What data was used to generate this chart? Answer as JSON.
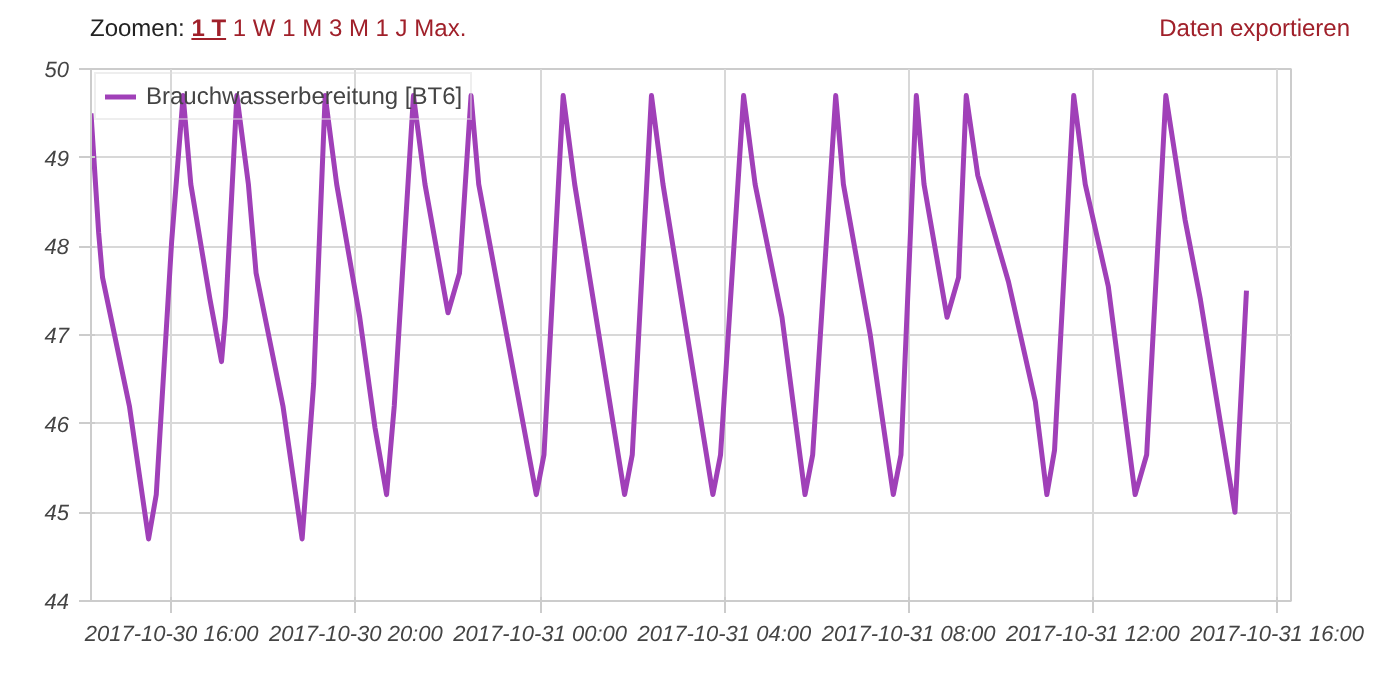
{
  "chart_data": {
    "type": "line",
    "annotations": [
      "Zoomen:",
      "1 T",
      "1 W",
      "1 M",
      "3 M",
      "1 J",
      "Max.",
      "Daten exportieren"
    ],
    "x": [
      "2017-10-30T14:15",
      "2017-10-30T14:25",
      "2017-10-30T14:30",
      "2017-10-30T15:05",
      "2017-10-30T15:30",
      "2017-10-30T15:40",
      "2017-10-30T16:00",
      "2017-10-30T16:15",
      "2017-10-30T16:25",
      "2017-10-30T16:50",
      "2017-10-30T17:05",
      "2017-10-30T17:10",
      "2017-10-30T17:25",
      "2017-10-30T17:40",
      "2017-10-30T17:50",
      "2017-10-30T18:25",
      "2017-10-30T18:50",
      "2017-10-30T19:05",
      "2017-10-30T19:20",
      "2017-10-30T19:35",
      "2017-10-30T20:05",
      "2017-10-30T20:25",
      "2017-10-30T20:40",
      "2017-10-30T20:50",
      "2017-10-30T21:15",
      "2017-10-30T21:30",
      "2017-10-30T22:00",
      "2017-10-30T22:15",
      "2017-10-30T22:30",
      "2017-10-30T22:40",
      "2017-10-30T23:55",
      "2017-10-31T00:05",
      "2017-10-31T00:30",
      "2017-10-31T00:45",
      "2017-10-31T01:50",
      "2017-10-31T02:00",
      "2017-10-31T02:25",
      "2017-10-31T02:40",
      "2017-10-31T03:45",
      "2017-10-31T03:55",
      "2017-10-31T04:25",
      "2017-10-31T04:40",
      "2017-10-31T05:15",
      "2017-10-31T05:45",
      "2017-10-31T05:55",
      "2017-10-31T06:25",
      "2017-10-31T06:35",
      "2017-10-31T07:10",
      "2017-10-31T07:40",
      "2017-10-31T07:50",
      "2017-10-31T08:10",
      "2017-10-31T08:20",
      "2017-10-31T08:50",
      "2017-10-31T09:05",
      "2017-10-31T09:15",
      "2017-10-31T09:30",
      "2017-10-31T10:10",
      "2017-10-31T10:45",
      "2017-10-31T11:00",
      "2017-10-31T11:10",
      "2017-10-31T11:35",
      "2017-10-31T11:50",
      "2017-10-31T12:20",
      "2017-10-31T12:55",
      "2017-10-31T13:10",
      "2017-10-31T13:35",
      "2017-10-31T14:00",
      "2017-10-31T14:20",
      "2017-10-31T15:05",
      "2017-10-31T15:20"
    ],
    "series": [
      {
        "name": "Brauchwasserbereitung [BT6]",
        "color": "#a040b8",
        "values": [
          49.5,
          48.15,
          47.65,
          46.2,
          44.7,
          45.2,
          48.05,
          49.7,
          48.7,
          47.4,
          46.7,
          47.2,
          49.7,
          48.7,
          47.7,
          46.2,
          44.7,
          46.45,
          49.7,
          48.7,
          47.2,
          45.95,
          45.2,
          46.2,
          49.7,
          48.7,
          47.25,
          47.7,
          49.7,
          48.7,
          45.2,
          45.65,
          49.7,
          48.7,
          45.2,
          45.65,
          49.7,
          48.7,
          45.2,
          45.65,
          49.7,
          48.7,
          47.2,
          45.2,
          45.65,
          49.7,
          48.7,
          47.0,
          45.2,
          45.65,
          49.7,
          48.7,
          47.2,
          47.65,
          49.7,
          48.8,
          47.6,
          46.25,
          45.2,
          45.7,
          49.7,
          48.7,
          47.55,
          45.2,
          45.65,
          49.7,
          48.3,
          47.4,
          45.0,
          47.5
        ]
      }
    ],
    "xlim": [
      "2017-10-30T14:15",
      "2017-10-31T16:18"
    ],
    "xticks": [
      {
        "value": "2017-10-30T16:00",
        "label": "2017-10-30 16:00"
      },
      {
        "value": "2017-10-30T20:00",
        "label": "2017-10-30 20:00"
      },
      {
        "value": "2017-10-31T00:00",
        "label": "2017-10-31 00:00"
      },
      {
        "value": "2017-10-31T04:00",
        "label": "2017-10-31 04:00"
      },
      {
        "value": "2017-10-31T08:00",
        "label": "2017-10-31 08:00"
      },
      {
        "value": "2017-10-31T12:00",
        "label": "2017-10-31 12:00"
      },
      {
        "value": "2017-10-31T16:00",
        "label": "2017-10-31 16:00"
      }
    ],
    "ylim": [
      44,
      50
    ],
    "yticks": [
      44,
      45,
      46,
      47,
      48,
      49,
      50
    ],
    "grid": true,
    "legend": "top left",
    "marker": "none",
    "line_style": "solid"
  }
}
